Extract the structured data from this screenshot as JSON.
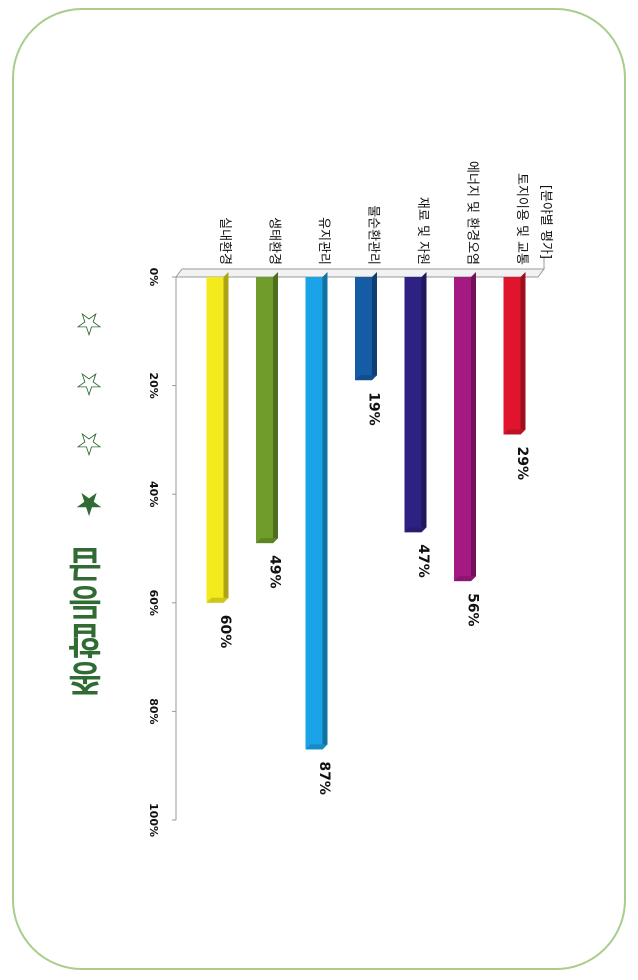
{
  "grade": {
    "label": "종합등급",
    "stars": [
      {
        "symbol": "★",
        "filled": true
      },
      {
        "symbol": "☆",
        "filled": false
      },
      {
        "symbol": "☆",
        "filled": false
      },
      {
        "symbol": "☆",
        "filled": false
      }
    ]
  },
  "chart_data": {
    "type": "bar",
    "orientation": "horizontal",
    "rotation": "90deg clockwise",
    "header": "[분야별 평가]",
    "categories": [
      "토지이용 및 교통",
      "에너지 및 환경오염",
      "재료 및 자원",
      "물순환관리",
      "유지관리",
      "생태환경",
      "실내환경"
    ],
    "values": [
      29,
      56,
      47,
      19,
      87,
      49,
      60
    ],
    "value_labels": [
      "29%",
      "56%",
      "47%",
      "19%",
      "87%",
      "49%",
      "60%"
    ],
    "colors": [
      "#e0142d",
      "#a41a82",
      "#2d2284",
      "#145ca6",
      "#1aa3e6",
      "#6f9c2a",
      "#f4ea1c"
    ],
    "xlim": [
      0,
      100
    ],
    "ticks": [
      "0%",
      "20%",
      "40%",
      "60%",
      "80%",
      "100%"
    ],
    "grid": false
  }
}
